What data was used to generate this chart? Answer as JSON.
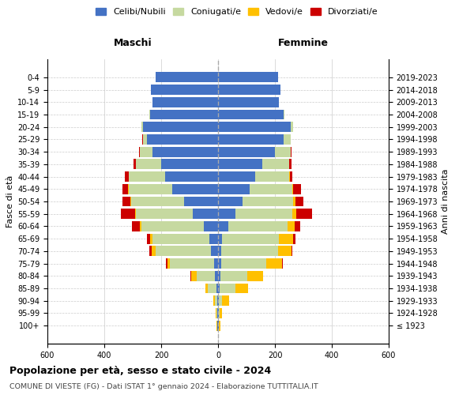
{
  "age_groups": [
    "100+",
    "95-99",
    "90-94",
    "85-89",
    "80-84",
    "75-79",
    "70-74",
    "65-69",
    "60-64",
    "55-59",
    "50-54",
    "45-49",
    "40-44",
    "35-39",
    "30-34",
    "25-29",
    "20-24",
    "15-19",
    "10-14",
    "5-9",
    "0-4"
  ],
  "birth_years": [
    "≤ 1923",
    "1924-1928",
    "1929-1933",
    "1934-1938",
    "1939-1943",
    "1944-1948",
    "1949-1953",
    "1954-1958",
    "1959-1963",
    "1964-1968",
    "1969-1973",
    "1974-1978",
    "1979-1983",
    "1984-1988",
    "1989-1993",
    "1994-1998",
    "1999-2003",
    "2004-2008",
    "2009-2013",
    "2014-2018",
    "2019-2023"
  ],
  "colors": {
    "celibi": "#4472c4",
    "coniugati": "#c6d9a0",
    "vedovi": "#ffc000",
    "divorziati": "#cc0000"
  },
  "males": {
    "celibi": [
      2,
      2,
      3,
      5,
      10,
      15,
      25,
      30,
      50,
      90,
      120,
      160,
      185,
      200,
      230,
      250,
      265,
      240,
      230,
      235,
      220
    ],
    "coniugati": [
      2,
      3,
      8,
      30,
      65,
      155,
      195,
      200,
      220,
      200,
      185,
      155,
      130,
      90,
      45,
      15,
      5,
      2,
      0,
      0,
      0
    ],
    "vedovi": [
      1,
      2,
      5,
      10,
      20,
      8,
      12,
      8,
      5,
      3,
      2,
      2,
      0,
      0,
      0,
      0,
      0,
      0,
      0,
      0,
      0
    ],
    "divorziati": [
      0,
      0,
      0,
      0,
      2,
      5,
      10,
      12,
      28,
      50,
      30,
      18,
      12,
      8,
      2,
      2,
      0,
      0,
      0,
      0,
      0
    ]
  },
  "females": {
    "celibi": [
      2,
      2,
      3,
      5,
      8,
      10,
      12,
      15,
      35,
      60,
      85,
      110,
      130,
      155,
      200,
      230,
      255,
      230,
      215,
      220,
      210
    ],
    "coniugati": [
      2,
      3,
      12,
      55,
      95,
      160,
      200,
      200,
      210,
      200,
      180,
      150,
      120,
      95,
      55,
      25,
      8,
      2,
      0,
      0,
      0
    ],
    "vedovi": [
      3,
      8,
      25,
      45,
      55,
      55,
      45,
      50,
      25,
      15,
      8,
      3,
      2,
      0,
      0,
      0,
      0,
      0,
      0,
      0,
      0
    ],
    "divorziati": [
      0,
      0,
      0,
      0,
      0,
      2,
      5,
      8,
      18,
      55,
      28,
      28,
      10,
      8,
      2,
      0,
      0,
      0,
      0,
      0,
      0
    ]
  },
  "xlim": 600,
  "title": "Popolazione per età, sesso e stato civile - 2024",
  "subtitle": "COMUNE DI VIESTE (FG) - Dati ISTAT 1° gennaio 2024 - Elaborazione TUTTITALIA.IT",
  "ylabel_left": "Fasce di età",
  "ylabel_right": "Anni di nascita",
  "xlabel_left": "Maschi",
  "xlabel_right": "Femmine",
  "bg_color": "#ffffff",
  "grid_color": "#cccccc"
}
